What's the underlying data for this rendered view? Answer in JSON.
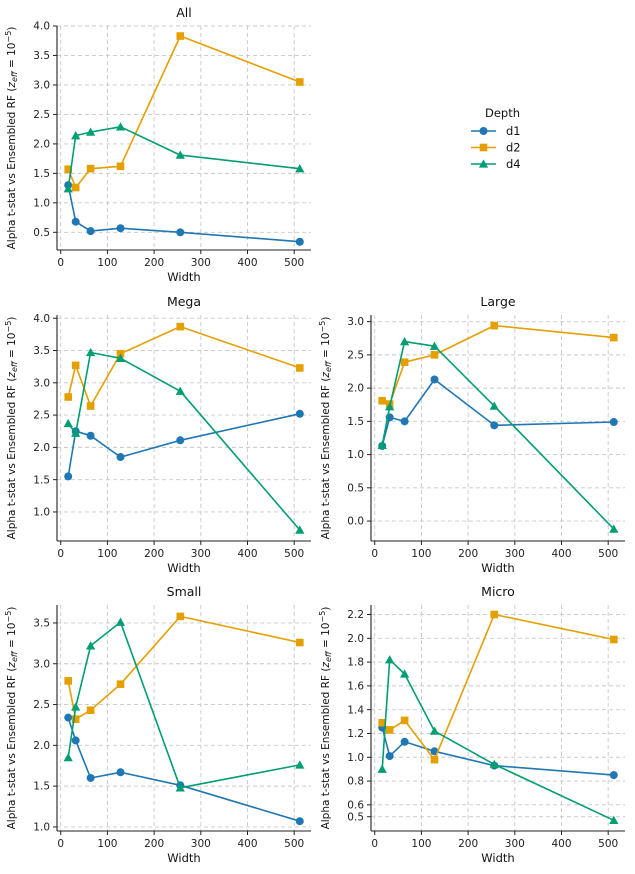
{
  "figure": {
    "legend": {
      "title": "Depth",
      "entries": [
        {
          "name": "d1",
          "color": "#1f77b4",
          "marker": "circle"
        },
        {
          "name": "d2",
          "color": "#e69f00",
          "marker": "square"
        },
        {
          "name": "d4",
          "color": "#009e73",
          "marker": "triangle"
        }
      ]
    },
    "colors": {
      "d1": "#1f77b4",
      "d2": "#e69f00",
      "d4": "#009e73",
      "grid": "#c8c8c8",
      "axis": "#222222"
    }
  },
  "chart_data": [
    {
      "type": "line",
      "title": "All",
      "xlabel": "Width",
      "ylabel": "Alpha t-stat vs Ensembled RF",
      "ylabel_math": "(z_eff = 10^-5)",
      "x": [
        16,
        32,
        64,
        128,
        256,
        512
      ],
      "xlim": [
        -8,
        536
      ],
      "ylim": [
        0.2,
        4.0
      ],
      "xticks": [
        0,
        100,
        200,
        300,
        400,
        500
      ],
      "yticks": [
        0.5,
        1.0,
        1.5,
        2.0,
        2.5,
        3.0,
        3.5,
        4.0
      ],
      "ytick_labels": [
        "0.5",
        "1.0",
        "1.5",
        "2.0",
        "2.5",
        "3.0",
        "3.5",
        "4.0"
      ],
      "grid": true,
      "series": [
        {
          "name": "d1",
          "values": [
            1.3,
            0.68,
            0.52,
            0.57,
            0.5,
            0.34
          ]
        },
        {
          "name": "d2",
          "values": [
            1.57,
            1.26,
            1.58,
            1.62,
            3.83,
            3.05
          ]
        },
        {
          "name": "d4",
          "values": [
            1.24,
            2.14,
            2.2,
            2.29,
            1.81,
            1.58
          ]
        }
      ]
    },
    {
      "type": "line",
      "title": "Mega",
      "xlabel": "Width",
      "ylabel": "Alpha t-stat vs Ensembled RF",
      "ylabel_math": "(z_eff = 10^-5)",
      "x": [
        16,
        32,
        64,
        128,
        256,
        512
      ],
      "xlim": [
        -8,
        536
      ],
      "ylim": [
        0.55,
        4.05
      ],
      "xticks": [
        0,
        100,
        200,
        300,
        400,
        500
      ],
      "yticks": [
        1.0,
        1.5,
        2.0,
        2.5,
        3.0,
        3.5,
        4.0
      ],
      "ytick_labels": [
        "1.0",
        "1.5",
        "2.0",
        "2.5",
        "3.0",
        "3.5",
        "4.0"
      ],
      "grid": true,
      "series": [
        {
          "name": "d1",
          "values": [
            1.55,
            2.25,
            2.18,
            1.85,
            2.11,
            2.52
          ]
        },
        {
          "name": "d2",
          "values": [
            2.78,
            3.27,
            2.64,
            3.45,
            3.87,
            3.23
          ]
        },
        {
          "name": "d4",
          "values": [
            2.37,
            2.22,
            3.47,
            3.38,
            2.87,
            0.72
          ]
        }
      ]
    },
    {
      "type": "line",
      "title": "Large",
      "xlabel": "Width",
      "ylabel": "Alpha t-stat vs Ensembled RF",
      "ylabel_math": "(z_eff = 10^-5)",
      "x": [
        16,
        32,
        64,
        128,
        256,
        512
      ],
      "xlim": [
        -8,
        536
      ],
      "ylim": [
        -0.3,
        3.1
      ],
      "xticks": [
        0,
        100,
        200,
        300,
        400,
        500
      ],
      "yticks": [
        0.0,
        0.5,
        1.0,
        1.5,
        2.0,
        2.5,
        3.0
      ],
      "ytick_labels": [
        "0.0",
        "0.5",
        "1.0",
        "1.5",
        "2.0",
        "2.5",
        "3.0"
      ],
      "grid": true,
      "series": [
        {
          "name": "d1",
          "values": [
            1.13,
            1.56,
            1.5,
            2.13,
            1.44,
            1.49
          ]
        },
        {
          "name": "d2",
          "values": [
            1.81,
            1.76,
            2.39,
            2.5,
            2.94,
            2.76
          ]
        },
        {
          "name": "d4",
          "values": [
            1.14,
            1.72,
            2.7,
            2.63,
            1.73,
            -0.12
          ]
        }
      ]
    },
    {
      "type": "line",
      "title": "Small",
      "xlabel": "Width",
      "ylabel": "Alpha t-stat vs Ensembled RF",
      "ylabel_math": "(z_eff = 10^-5)",
      "x": [
        16,
        32,
        64,
        128,
        256,
        512
      ],
      "xlim": [
        -8,
        536
      ],
      "ylim": [
        0.95,
        3.72
      ],
      "xticks": [
        0,
        100,
        200,
        300,
        400,
        500
      ],
      "yticks": [
        1.0,
        1.5,
        2.0,
        2.5,
        3.0,
        3.5
      ],
      "ytick_labels": [
        "1.0",
        "1.5",
        "2.0",
        "2.5",
        "3.0",
        "3.5"
      ],
      "grid": true,
      "series": [
        {
          "name": "d1",
          "values": [
            2.34,
            2.06,
            1.6,
            1.67,
            1.51,
            1.07
          ]
        },
        {
          "name": "d2",
          "values": [
            2.79,
            2.32,
            2.43,
            2.75,
            3.58,
            3.26
          ]
        },
        {
          "name": "d4",
          "values": [
            1.85,
            2.47,
            3.22,
            3.51,
            1.48,
            1.76
          ]
        }
      ]
    },
    {
      "type": "line",
      "title": "Micro",
      "xlabel": "Width",
      "ylabel": "Alpha t-stat vs Ensembled RF",
      "ylabel_math": "(z_eff = 10^-5)",
      "x": [
        16,
        32,
        64,
        128,
        256,
        512
      ],
      "xlim": [
        -8,
        536
      ],
      "ylim": [
        0.38,
        2.28
      ],
      "xticks": [
        0,
        100,
        200,
        300,
        400,
        500
      ],
      "yticks": [
        0.5,
        0.6,
        0.8,
        1.0,
        1.2,
        1.4,
        1.6,
        1.8,
        2.0,
        2.2
      ],
      "ytick_labels": [
        "0.5",
        "0.6",
        "0.8",
        "1.0",
        "1.2",
        "1.4",
        "1.6",
        "1.8",
        "2.0",
        "2.2"
      ],
      "grid": true,
      "series": [
        {
          "name": "d1",
          "values": [
            1.25,
            1.01,
            1.13,
            1.05,
            0.93,
            0.85
          ]
        },
        {
          "name": "d2",
          "values": [
            1.29,
            1.23,
            1.31,
            0.98,
            2.2,
            1.99
          ]
        },
        {
          "name": "d4",
          "values": [
            0.9,
            1.82,
            1.7,
            1.22,
            0.94,
            0.47
          ]
        }
      ]
    }
  ]
}
